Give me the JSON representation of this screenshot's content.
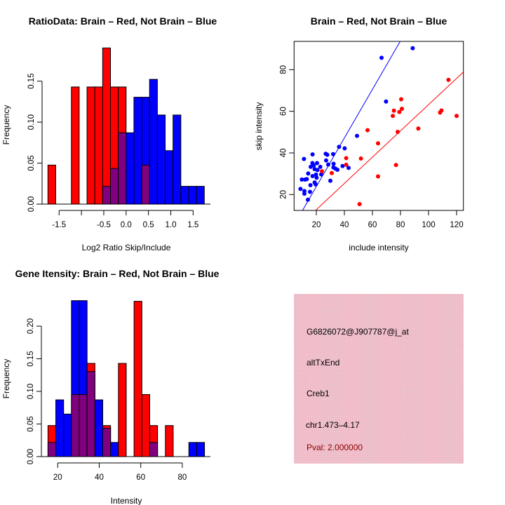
{
  "colors": {
    "red": "#ff0000",
    "blue": "#0000ff",
    "overlap": "#800080",
    "pval": "#8b0000",
    "panel": "#f2c4cf"
  },
  "chart_data": [
    {
      "type": "bar",
      "subtype": "overlaid-histogram",
      "title": "RatioData: Brain – Red, Not Brain – Blue",
      "xlabel": "Log2 Ratio Skip/Include",
      "ylabel": "Frequency",
      "xlim": [
        -1.75,
        1.75
      ],
      "ylim": [
        0,
        0.19
      ],
      "bin_start": -1.75,
      "bin_width": 0.175,
      "xticks": [
        -1.5,
        -1.0,
        -0.5,
        0.0,
        0.5,
        1.0,
        1.5
      ],
      "xtick_labels": [
        "-1.5",
        "",
        "-0.5",
        "0.0",
        "0.5",
        "1.0",
        "1.5"
      ],
      "yticks": [
        0,
        0.05,
        0.1,
        0.15
      ],
      "ytick_labels": [
        "0.00",
        "0.05",
        "0.10",
        "0.15"
      ],
      "series": [
        {
          "name": "Brain",
          "color": "red",
          "values": [
            0.0476,
            0,
            0,
            0.1429,
            0,
            0.1429,
            0.1429,
            0.1905,
            0.1429,
            0.1429,
            0,
            0,
            0.0476,
            0,
            0,
            0,
            0,
            0,
            0,
            0
          ]
        },
        {
          "name": "Not Brain",
          "color": "blue",
          "values": [
            0,
            0,
            0,
            0,
            0,
            0,
            0,
            0.0217,
            0.0435,
            0.087,
            0.087,
            0.1304,
            0.1304,
            0.1522,
            0.1087,
            0.0652,
            0.1087,
            0.0217,
            0.0217,
            0.0217
          ]
        }
      ]
    },
    {
      "type": "scatter",
      "title": "Brain – Red, Not Brain – Blue",
      "xlabel": "include intensity",
      "ylabel": "skip intensity",
      "xlim": [
        5,
        125
      ],
      "ylim": [
        12,
        93
      ],
      "xticks": [
        20,
        40,
        60,
        80,
        100,
        120
      ],
      "xtick_labels": [
        "20",
        "40",
        "60",
        "80",
        "100",
        "120"
      ],
      "yticks": [
        20,
        40,
        60,
        80
      ],
      "ytick_labels": [
        "20",
        "40",
        "60",
        "80"
      ],
      "series": [
        {
          "name": "Not Brain",
          "color": "blue",
          "fit": {
            "slope": 1.167,
            "intercept": 0.5
          },
          "points": [
            [
              8.7,
              22.7
            ],
            [
              9.7,
              27.2
            ],
            [
              11.2,
              37.1
            ],
            [
              11.5,
              21.7
            ],
            [
              11.5,
              20.4
            ],
            [
              12,
              27.2
            ],
            [
              13.2,
              27.4
            ],
            [
              14,
              17.5
            ],
            [
              14.2,
              30.1
            ],
            [
              15.5,
              21.3
            ],
            [
              15.8,
              24.5
            ],
            [
              16,
              33.3
            ],
            [
              17.2,
              35.1
            ],
            [
              17.3,
              39.3
            ],
            [
              17.3,
              28.9
            ],
            [
              18.2,
              34
            ],
            [
              18.8,
              32.2
            ],
            [
              18.8,
              25.8
            ],
            [
              19.5,
              24.9
            ],
            [
              19.8,
              29.6
            ],
            [
              20.2,
              28.1
            ],
            [
              20.5,
              35.1
            ],
            [
              20.8,
              31.8
            ],
            [
              22.8,
              33.3
            ],
            [
              23.5,
              29.7
            ],
            [
              26.7,
              39.6
            ],
            [
              27,
              36.4
            ],
            [
              27.8,
              39.1
            ],
            [
              28.5,
              34.4
            ],
            [
              30,
              26.6
            ],
            [
              32,
              39.4
            ],
            [
              32.3,
              34.8
            ],
            [
              32.2,
              33
            ],
            [
              33.5,
              32.5
            ],
            [
              35,
              31.9
            ],
            [
              36.2,
              42.9
            ],
            [
              38.7,
              33.7
            ],
            [
              40.2,
              42.2
            ],
            [
              43,
              32.8
            ],
            [
              49,
              48.2
            ],
            [
              66.5,
              85.7
            ],
            [
              69.7,
              64.7
            ],
            [
              88.7,
              90.3
            ]
          ]
        },
        {
          "name": "Brain",
          "color": "red",
          "fit": {
            "slope": 0.631,
            "intercept": 0.1
          },
          "points": [
            [
              24,
              31.2
            ],
            [
              31,
              30.3
            ],
            [
              41.3,
              37.5
            ],
            [
              41.3,
              34.3
            ],
            [
              51.8,
              37.3
            ],
            [
              50.8,
              15.4
            ],
            [
              56.5,
              50.9
            ],
            [
              64,
              44.6
            ],
            [
              64,
              28.7
            ],
            [
              74.5,
              57.8
            ],
            [
              75.3,
              60.3
            ],
            [
              76.8,
              34.2
            ],
            [
              78,
              50.1
            ],
            [
              79.2,
              59.7
            ],
            [
              80.5,
              65.8
            ],
            [
              81,
              61.2
            ],
            [
              92.7,
              51.7
            ],
            [
              108.2,
              59.4
            ],
            [
              109.2,
              60.4
            ],
            [
              114.2,
              75.1
            ],
            [
              120,
              57.8
            ]
          ]
        }
      ]
    },
    {
      "type": "bar",
      "subtype": "overlaid-histogram",
      "title": "Gene Itensity: Brain – Red, Not Brain – Blue",
      "xlabel": "Intensity",
      "ylabel": "Frequency",
      "xlim": [
        15.3,
        90.7
      ],
      "ylim": [
        0,
        0.24
      ],
      "bin_start": 15.3,
      "bin_width": 3.77,
      "xticks": [
        20,
        40,
        60,
        80
      ],
      "xtick_labels": [
        "20",
        "40",
        "60",
        "80"
      ],
      "yticks": [
        0,
        0.05,
        0.1,
        0.15,
        0.2
      ],
      "ytick_labels": [
        "0.00",
        "0.05",
        "0.10",
        "0.15",
        "0.20"
      ],
      "series": [
        {
          "name": "Brain",
          "color": "red",
          "values": [
            0.0476,
            0,
            0,
            0.0952,
            0.0952,
            0.1429,
            0,
            0.0476,
            0,
            0.1429,
            0,
            0.2381,
            0.0952,
            0.0476,
            0,
            0.0476,
            0,
            0,
            0,
            0
          ]
        },
        {
          "name": "Not Brain",
          "color": "blue",
          "values": [
            0.0217,
            0.087,
            0.0652,
            0.2391,
            0.2391,
            0.1304,
            0.087,
            0.0435,
            0.0217,
            0,
            0,
            0,
            0,
            0.0217,
            0,
            0,
            0,
            0,
            0.0217,
            0.0217
          ]
        }
      ]
    }
  ],
  "info_panel": {
    "probe_id": "G6826072@J907787@j_at",
    "event_type": "altTxEnd",
    "gene": "Creb1",
    "location": "chr1.473–4.17",
    "pval": "Pval: 2.000000"
  }
}
